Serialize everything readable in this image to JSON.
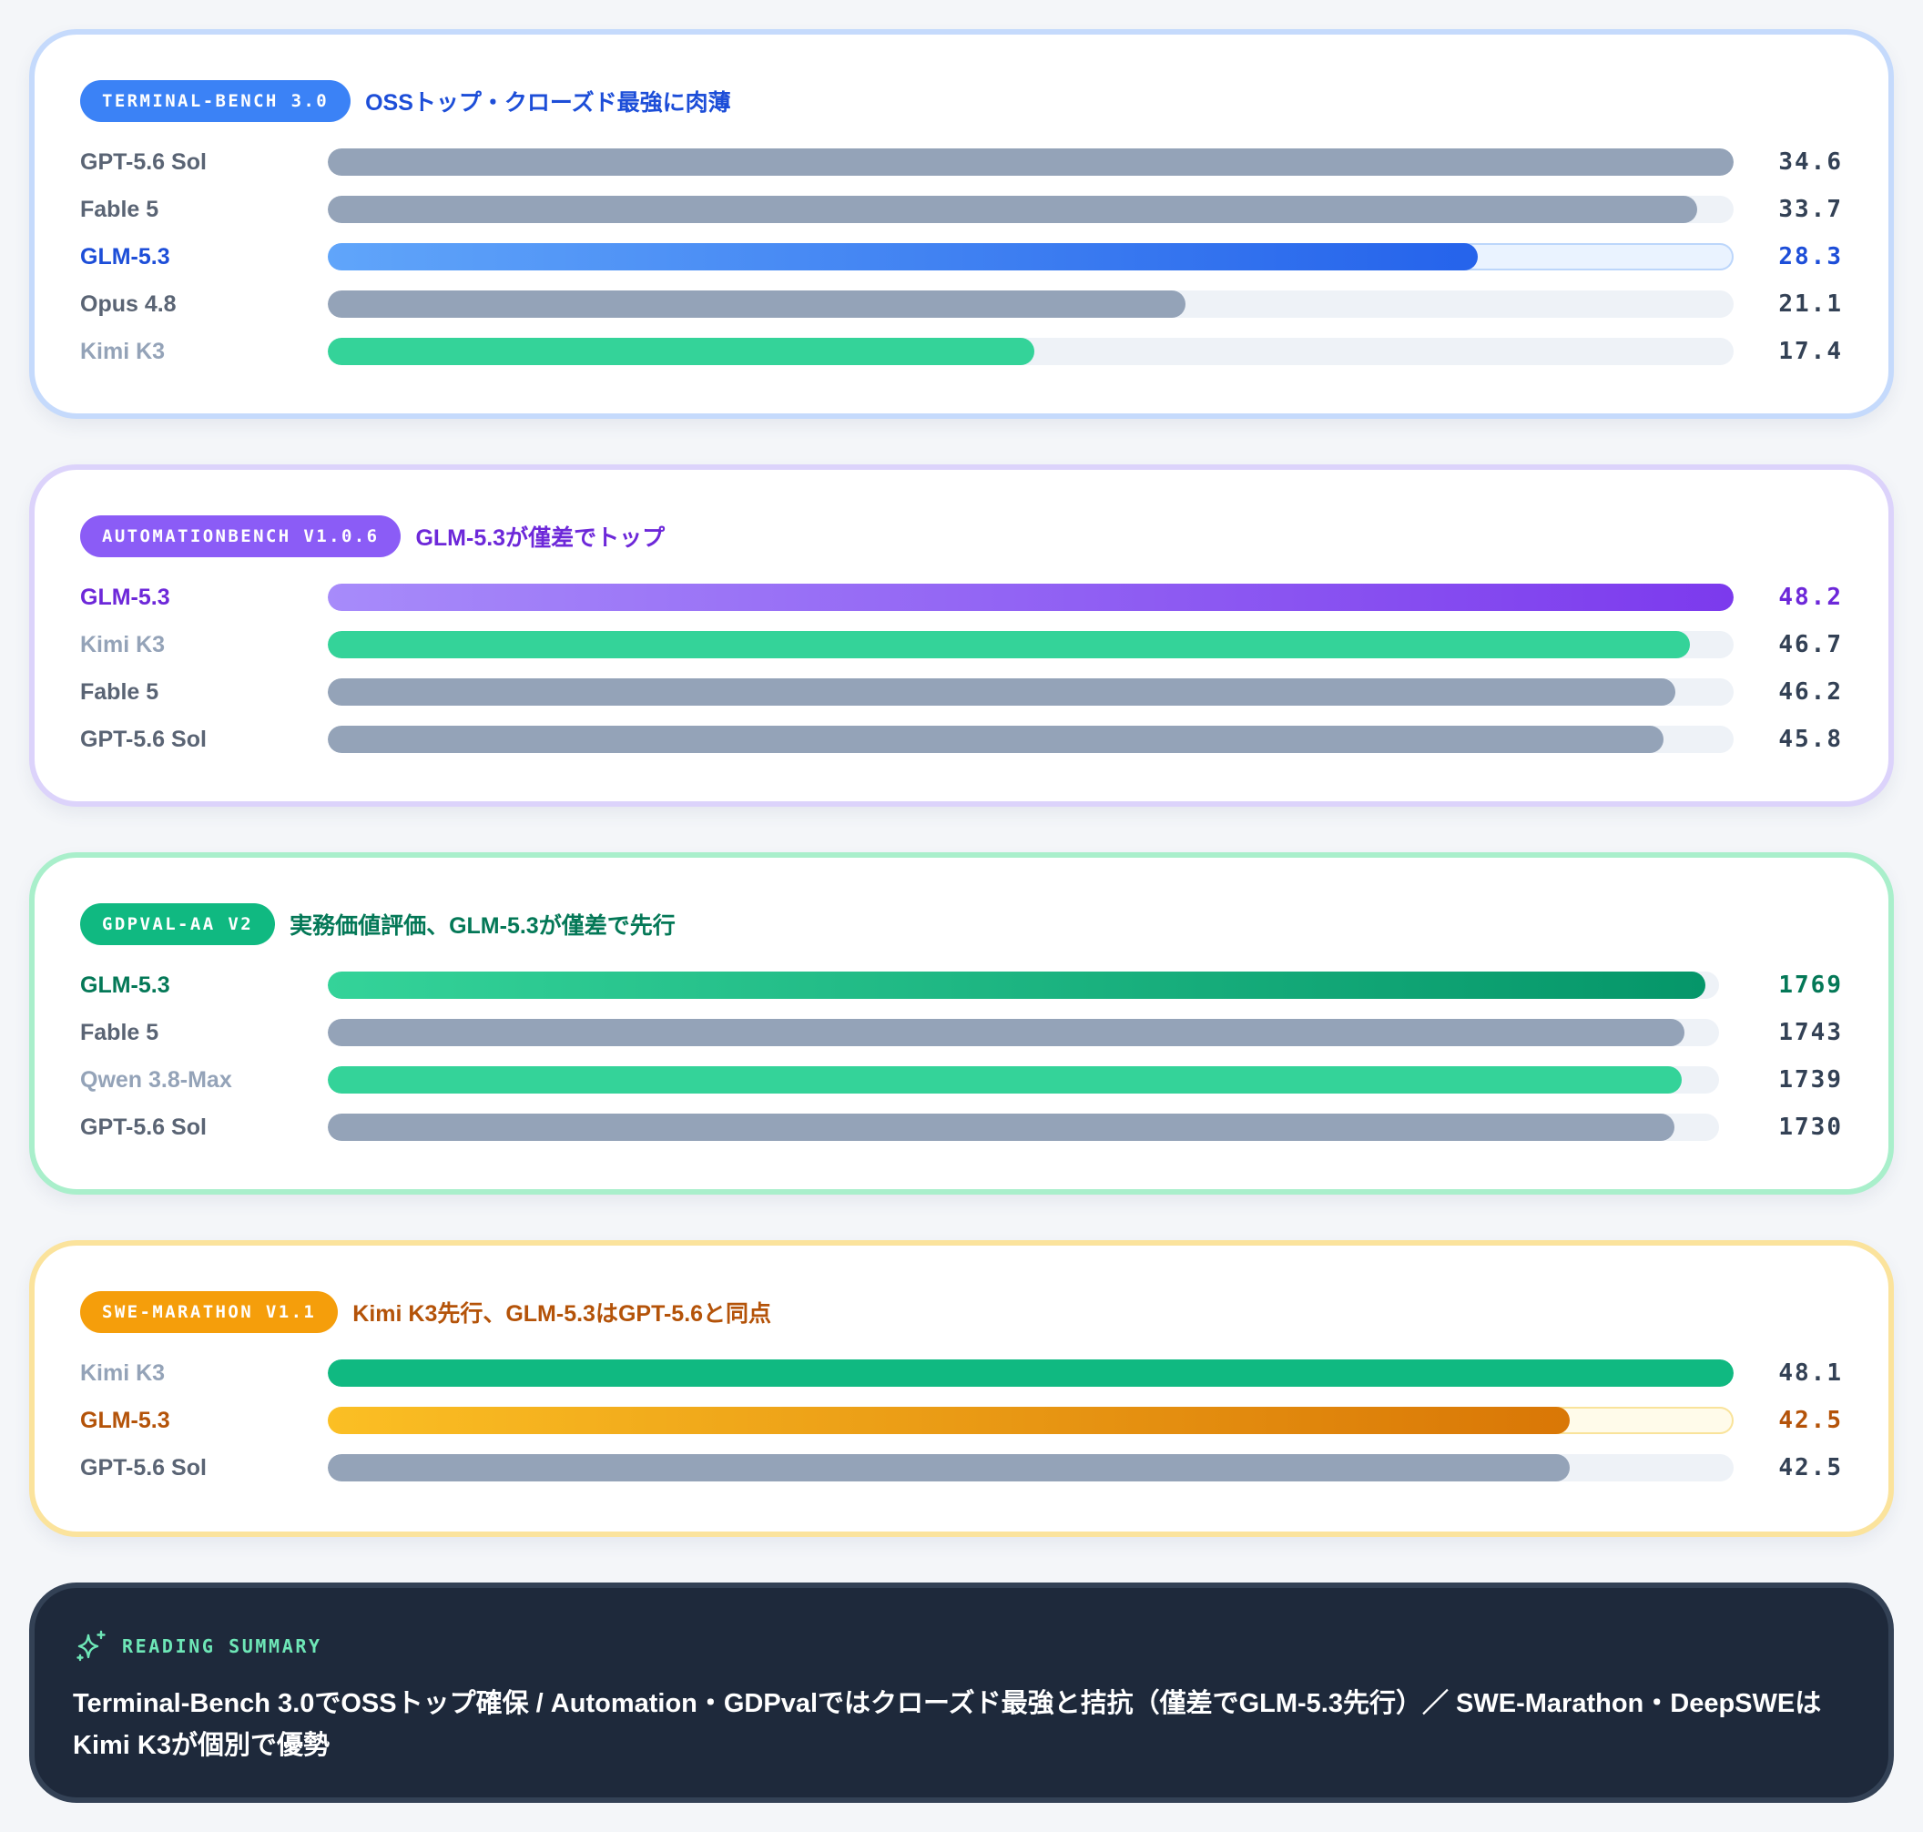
{
  "cards": [
    {
      "badge": "TERMINAL-BENCH 3.0",
      "headline": "OSSトップ・クローズド最強に肉薄",
      "theme": "blue",
      "accent_color": "#3b82f6"
    },
    {
      "badge": "AUTOMATIONBENCH V1.0.6",
      "headline": "GLM-5.3が僅差でトップ",
      "theme": "purple",
      "accent_color": "#8b5cf6"
    },
    {
      "badge": "GDPVAL-AA V2",
      "headline": "実務価値評価、GLM-5.3が僅差で先行",
      "theme": "green",
      "accent_color": "#10b981"
    },
    {
      "badge": "SWE-MARATHON V1.1",
      "headline": "Kimi K3先行、GLM-5.3はGPT-5.6と同点",
      "theme": "orange",
      "accent_color": "#f59e0b"
    }
  ],
  "summary": {
    "icon": "sparkle-icon",
    "label": "READING SUMMARY",
    "text": "Terminal-Bench 3.0でOSSトップ確保 / Automation・GDPvalではクローズド最強と拮抗（僅差でGLM-5.3先行）／ SWE-Marathon・DeepSWEはKimi K3が個別で優勢"
  },
  "chart_data": [
    {
      "type": "bar",
      "orientation": "horizontal",
      "title": "TERMINAL-BENCH 3.0",
      "subtitle": "OSSトップ・クローズド最強に肉薄",
      "categories": [
        "GPT-5.6 Sol",
        "Fable 5",
        "GLM-5.3",
        "Opus 4.8",
        "Kimi K3"
      ],
      "values": [
        34.6,
        33.7,
        28.3,
        21.1,
        17.4
      ],
      "value_labels": [
        "34.6",
        "33.7",
        "28.3",
        "21.1",
        "17.4"
      ],
      "styles": [
        "gray",
        "gray",
        "blue",
        "gray",
        "green"
      ],
      "highlight": [
        false,
        false,
        true,
        false,
        false
      ],
      "muted": [
        false,
        false,
        false,
        false,
        true
      ],
      "xlim": [
        0,
        34.6
      ],
      "grid": false
    },
    {
      "type": "bar",
      "orientation": "horizontal",
      "title": "AUTOMATIONBENCH V1.0.6",
      "subtitle": "GLM-5.3が僅差でトップ",
      "categories": [
        "GLM-5.3",
        "Kimi K3",
        "Fable 5",
        "GPT-5.6 Sol"
      ],
      "values": [
        48.2,
        46.7,
        46.2,
        45.8
      ],
      "value_labels": [
        "48.2",
        "46.7",
        "46.2",
        "45.8"
      ],
      "styles": [
        "purple",
        "green",
        "gray",
        "gray"
      ],
      "highlight": [
        true,
        false,
        false,
        false
      ],
      "muted": [
        false,
        true,
        false,
        false
      ],
      "xlim": [
        0,
        48.2
      ],
      "grid": false
    },
    {
      "type": "bar",
      "orientation": "horizontal",
      "title": "GDPVAL-AA V2",
      "subtitle": "実務価値評価、GLM-5.3が僅差で先行",
      "categories": [
        "GLM-5.3",
        "Fable 5",
        "Qwen 3.8-Max",
        "GPT-5.6 Sol"
      ],
      "values": [
        1769,
        1743,
        1739,
        1730
      ],
      "value_labels": [
        "1769",
        "1743",
        "1739",
        "1730"
      ],
      "styles": [
        "emerald",
        "gray",
        "green",
        "gray"
      ],
      "highlight": [
        true,
        false,
        false,
        false
      ],
      "muted": [
        false,
        false,
        true,
        false
      ],
      "xlim": [
        0,
        1787
      ],
      "grid": false
    },
    {
      "type": "bar",
      "orientation": "horizontal",
      "title": "SWE-MARATHON V1.1",
      "subtitle": "Kimi K3先行、GLM-5.3はGPT-5.6と同点",
      "categories": [
        "Kimi K3",
        "GLM-5.3",
        "GPT-5.6 Sol"
      ],
      "values": [
        48.1,
        42.5,
        42.5
      ],
      "value_labels": [
        "48.1",
        "42.5",
        "42.5"
      ],
      "styles": [
        "green2",
        "amber",
        "gray"
      ],
      "highlight": [
        false,
        true,
        false
      ],
      "muted": [
        true,
        false,
        false
      ],
      "xlim": [
        0,
        48.1
      ],
      "grid": false
    }
  ]
}
